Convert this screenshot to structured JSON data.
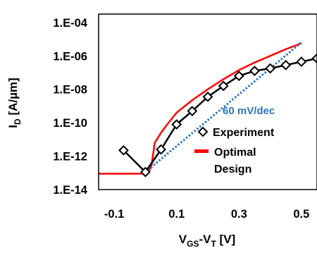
{
  "chart_data": {
    "type": "line",
    "title": "",
    "xlabel": {
      "main": "V",
      "sub1": "GS",
      "mid": "-V",
      "sub2": "T",
      "tail": " [V]"
    },
    "ylabel": {
      "main": "I",
      "sub": "D",
      "tail": " [A/µm]"
    },
    "xlim": [
      -0.15,
      0.55
    ],
    "ylim_log10": [
      -14,
      -3.5
    ],
    "y_scale": "log",
    "grid": false,
    "x_ticks": [
      {
        "value": -0.1,
        "label": "-0.1"
      },
      {
        "value": 0.1,
        "label": "0.1"
      },
      {
        "value": 0.3,
        "label": "0.3"
      },
      {
        "value": 0.5,
        "label": "0.5"
      }
    ],
    "y_ticks": [
      {
        "value": -14,
        "label": "1.E-14"
      },
      {
        "value": -12,
        "label": "1.E-12"
      },
      {
        "value": -10,
        "label": "1.E-10"
      },
      {
        "value": -8,
        "label": "1.E-08"
      },
      {
        "value": -6,
        "label": "1.E-06"
      },
      {
        "value": -4,
        "label": "1.E-04"
      }
    ],
    "series": [
      {
        "name": "Experiment",
        "style": "line-diamond",
        "color": "#000000",
        "x": [
          -0.07,
          0.0,
          0.05,
          0.1,
          0.15,
          0.2,
          0.25,
          0.3,
          0.35,
          0.4,
          0.45,
          0.5,
          0.55
        ],
        "log10_y": [
          -11.65,
          -12.95,
          -11.6,
          -10.1,
          -9.3,
          -8.45,
          -7.8,
          -7.2,
          -6.9,
          -6.75,
          -6.55,
          -6.35,
          -6.15
        ]
      },
      {
        "name": "Optimal Design",
        "style": "line",
        "color": "#ff0000",
        "x": [
          -0.15,
          -0.1,
          -0.05,
          -0.01,
          0.0,
          0.01,
          0.02,
          0.03,
          0.05,
          0.07,
          0.1,
          0.15,
          0.2,
          0.25,
          0.3,
          0.35,
          0.4,
          0.45,
          0.5
        ],
        "log10_y": [
          -13.05,
          -13.05,
          -13.05,
          -13.05,
          -13.05,
          -13.0,
          -12.5,
          -11.2,
          -10.6,
          -10.1,
          -9.4,
          -8.65,
          -8.0,
          -7.4,
          -6.85,
          -6.4,
          -6.0,
          -5.6,
          -5.25
        ]
      },
      {
        "name": "60 mV/dec",
        "style": "dotted",
        "color": "#2e75b6",
        "x": [
          0.0,
          0.5
        ],
        "log10_y": [
          -12.95,
          -5.2
        ]
      }
    ],
    "annotation": {
      "text": "60 mV/dec",
      "color": "#2e75b6"
    },
    "legend": {
      "placement": "bottom-right",
      "items": [
        {
          "label": "Experiment",
          "marker": "diamond",
          "color": "#000000"
        },
        {
          "label": "Optimal",
          "label2": "Design",
          "marker": "line",
          "color": "#ff0000"
        }
      ]
    }
  }
}
